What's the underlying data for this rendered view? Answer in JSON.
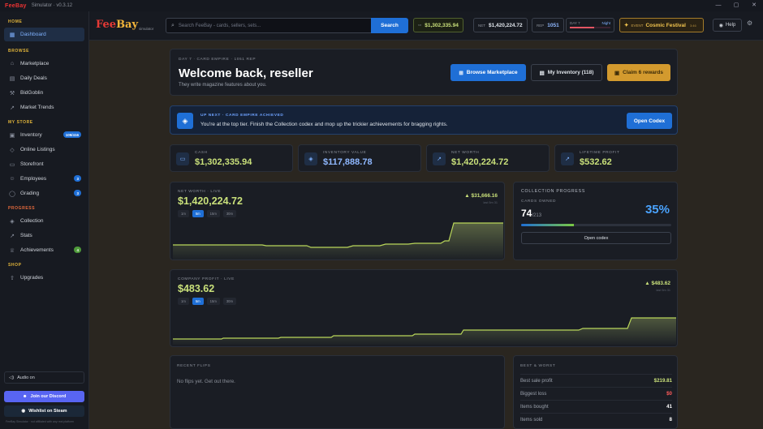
{
  "window": {
    "title": "FeeBay",
    "subtitle": "Simulator · v0.3.12",
    "minimize": "—",
    "maximize": "▢",
    "close": "✕"
  },
  "sidebar": {
    "sections": [
      {
        "title": "HOME",
        "items": [
          {
            "label": "Dashboard",
            "icon": "dashboard-icon",
            "active": true
          }
        ]
      },
      {
        "title": "BROWSE",
        "items": [
          {
            "label": "Marketplace",
            "icon": "cart-icon"
          },
          {
            "label": "Daily Deals",
            "icon": "calendar-icon"
          },
          {
            "label": "BidGoblin",
            "icon": "hammer-icon"
          },
          {
            "label": "Market Trends",
            "icon": "trend-icon"
          }
        ]
      },
      {
        "title": "MY STORE",
        "items": [
          {
            "label": "Inventory",
            "icon": "box-icon",
            "badge": "109/416"
          },
          {
            "label": "Online Listings",
            "icon": "tag-icon"
          },
          {
            "label": "Storefront",
            "icon": "store-icon"
          },
          {
            "label": "Employees",
            "icon": "people-icon",
            "badge": "3"
          },
          {
            "label": "Grading",
            "icon": "shield-icon",
            "badge": "3"
          }
        ]
      },
      {
        "title": "PROGRESS",
        "items": [
          {
            "label": "Collection",
            "icon": "stack-icon"
          },
          {
            "label": "Stats",
            "icon": "chart-icon"
          },
          {
            "label": "Achievements",
            "icon": "trophy-icon",
            "badge": "4"
          }
        ]
      },
      {
        "title": "SHOP",
        "items": [
          {
            "label": "Upgrades",
            "icon": "upgrade-icon"
          }
        ]
      }
    ],
    "audio_label": "Audio on",
    "discord_label": "Join our Discord",
    "steam_label": "Wishlist on Steam",
    "disclaimer": "FeeBay Simulator · not affiliated with any real platform"
  },
  "topbar": {
    "brand_fee": "Fee",
    "brand_bay": "Bay",
    "brand_sub": "simulator",
    "search_placeholder": "Search FeeBay - cards, sellers, sets...",
    "search_button": "Search",
    "cash_value": "$1,302,335.94",
    "nw_key": "NET",
    "nw_value": "$1,420,224.72",
    "rep_key": "REP",
    "rep_value": "1051",
    "day_label": "DAY 7",
    "time_label": "Night",
    "night_progress": 0.6,
    "event_key": "EVENT",
    "event_name": "Cosmic Festival",
    "event_time": "3:46",
    "help_label": "Help"
  },
  "hero": {
    "kicker": "DAY 7 · CARD EMPIRE · 1051 REP",
    "title": "Welcome back, reseller",
    "subtitle": "They write magazine features about you.",
    "browse_button": "Browse Marketplace",
    "inventory_button": "My Inventory (118)",
    "claim_button": "Claim 6 rewards"
  },
  "next": {
    "kicker": "UP NEXT · CARD EMPIRE ACHIEVED",
    "message": "You're at the top tier. Finish the Collection codex and mop up the trickier achievements for bragging rights.",
    "button": "Open Codex"
  },
  "kpis": [
    {
      "label": "CASH",
      "value": "$1,302,335.94",
      "icon": "wallet-icon"
    },
    {
      "label": "INVENTORY VALUE",
      "value": "$117,888.78",
      "icon": "box-icon"
    },
    {
      "label": "NET WORTH",
      "value": "$1,420,224.72",
      "icon": "trend-icon"
    },
    {
      "label": "LIFETIME PROFIT",
      "value": "$532.62",
      "icon": "trend-icon"
    }
  ],
  "ranges": [
    "1m",
    "5m",
    "15m",
    "30m"
  ],
  "net_worth_chart": {
    "label": "NET WORTH · LIVE",
    "value": "$1,420,224.72",
    "delta": "▲ $31,666.16",
    "since": "last 5m 31",
    "selected_range": "5m"
  },
  "profit_chart": {
    "label": "COMPANY PROFIT · LIVE",
    "value": "$483.62",
    "delta": "▲ $483.62",
    "since": "last 5m 31",
    "selected_range": "5m"
  },
  "collection": {
    "title": "COLLECTION PROGRESS",
    "owned_label": "CARDS OWNED",
    "owned": "74",
    "total": "/213",
    "percent": "35%",
    "progress": 0.35,
    "button": "Open codex"
  },
  "flips": {
    "title": "RECENT FLIPS",
    "empty": "No flips yet. Get out there."
  },
  "best_worst": {
    "title": "BEST & WORST",
    "rows": [
      {
        "label": "Best sale profit",
        "value": "$219.81",
        "tone": "g"
      },
      {
        "label": "Biggest loss",
        "value": "$0",
        "tone": "r"
      },
      {
        "label": "Items bought",
        "value": "41",
        "tone": "w"
      },
      {
        "label": "Items sold",
        "value": "8",
        "tone": "w"
      }
    ]
  },
  "colors": {
    "accent": "#1f6fd6",
    "money": "#c9e07a",
    "gold": "#d39a2e",
    "brand_red": "#e53935"
  }
}
